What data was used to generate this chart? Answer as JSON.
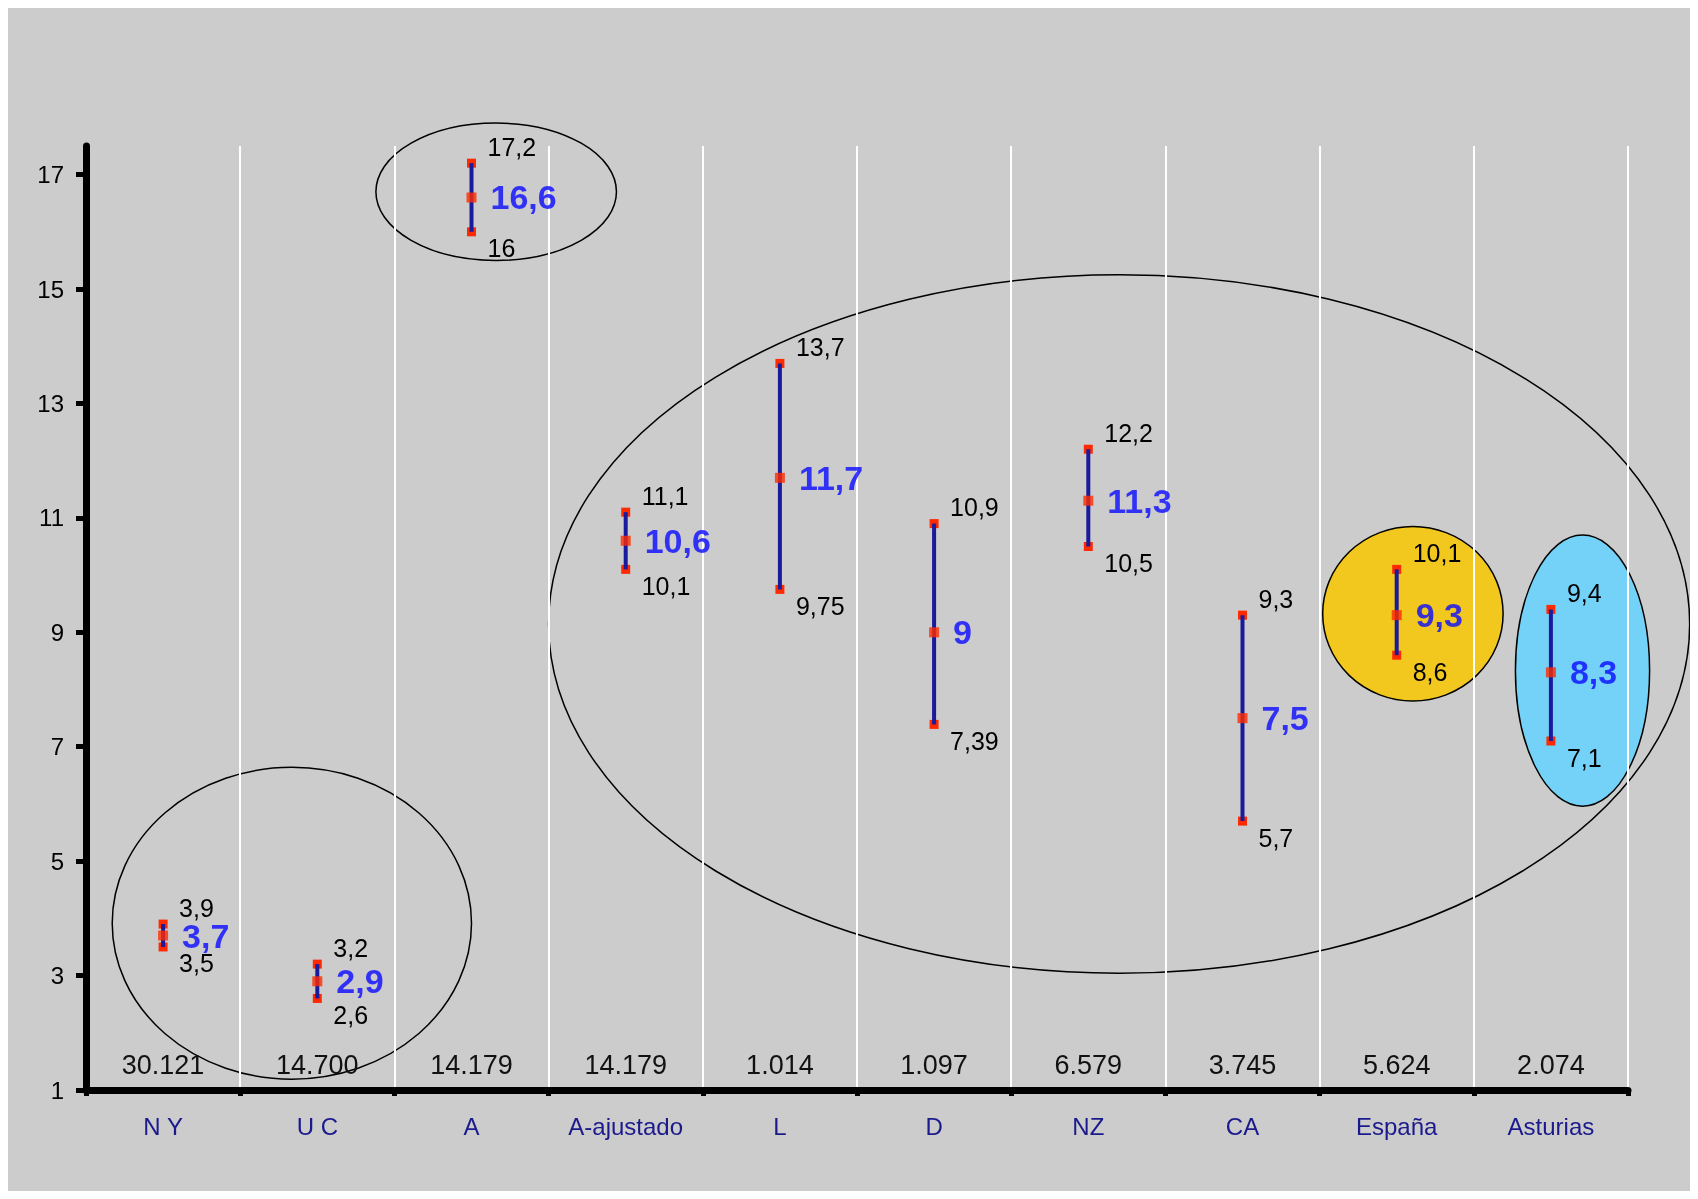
{
  "chart_data": {
    "type": "scatter",
    "categories": [
      "N Y",
      "U C",
      "A",
      "A-ajustado",
      "L",
      "D",
      "NZ",
      "CA",
      "España",
      "Asturias"
    ],
    "values": [
      3.7,
      2.9,
      16.6,
      10.6,
      11.7,
      9,
      11.3,
      7.5,
      9.3,
      8.3
    ],
    "value_labels": [
      "3,7",
      "2,9",
      "16,6",
      "10,6",
      "11,7",
      "9",
      "11,3",
      "7,5",
      "9,3",
      "8,3"
    ],
    "errors": [
      [
        3.5,
        3.9
      ],
      [
        2.6,
        3.2
      ],
      [
        16,
        17.2
      ],
      [
        10.1,
        11.1
      ],
      [
        9.75,
        13.7
      ],
      [
        7.39,
        10.9
      ],
      [
        10.5,
        12.2
      ],
      [
        5.7,
        9.3
      ],
      [
        8.6,
        10.1
      ],
      [
        7.1,
        9.4
      ]
    ],
    "color": "#ff2a00",
    "marker": "square",
    "ylim": [
      1,
      17.5
    ],
    "yticks": [
      1,
      3,
      5,
      7,
      9,
      11,
      13,
      15,
      17
    ],
    "grid": "x",
    "annotations": [
      {
        "text": "3,9",
        "x": "N Y",
        "y": 3.9
      },
      {
        "text": "3,5",
        "x": "N Y",
        "y": 3.5
      },
      {
        "text": "3,2",
        "x": "U C",
        "y": 3.2
      },
      {
        "text": "2,6",
        "x": "U C",
        "y": 2.6
      },
      {
        "text": "17,2",
        "x": "A",
        "y": 17.2
      },
      {
        "text": "16",
        "x": "A",
        "y": 16
      },
      {
        "text": "11,1",
        "x": "A-ajustado",
        "y": 11.1
      },
      {
        "text": "10,1",
        "x": "A-ajustado",
        "y": 10.1
      },
      {
        "text": "13,7",
        "x": "L",
        "y": 13.7
      },
      {
        "text": "9,75",
        "x": "L",
        "y": 9.75
      },
      {
        "text": "10,9",
        "x": "D",
        "y": 10.9
      },
      {
        "text": "7,39",
        "x": "D",
        "y": 7.39
      },
      {
        "text": "12,2",
        "x": "NZ",
        "y": 12.2
      },
      {
        "text": "10,5",
        "x": "NZ",
        "y": 10.5
      },
      {
        "text": "9,3",
        "x": "CA",
        "y": 9.3
      },
      {
        "text": "5,7",
        "x": "CA",
        "y": 5.7
      },
      {
        "text": "10,1",
        "x": "España",
        "y": 10.1
      },
      {
        "text": "8,6",
        "x": "España",
        "y": 8.6
      },
      {
        "text": "9,4",
        "x": "Asturias",
        "y": 9.4
      },
      {
        "text": "7,1",
        "x": "Asturias",
        "y": 7.1
      },
      "30.121",
      "14.700",
      "14.179",
      "14.179",
      "1.014",
      "1.097",
      "6.579",
      "3.745",
      "5.624",
      "2.074"
    ]
  }
}
